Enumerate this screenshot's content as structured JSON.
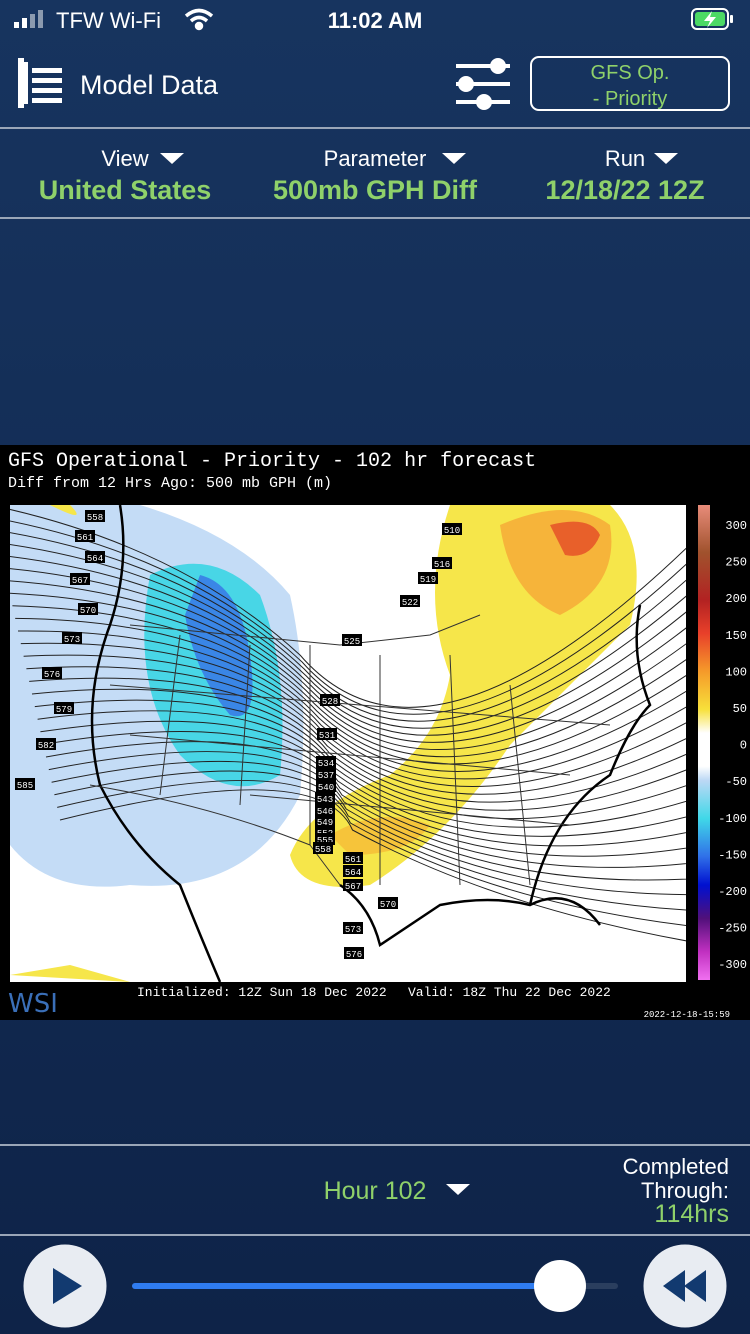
{
  "status": {
    "carrier": "TFW Wi-Fi",
    "time": "11:02 AM"
  },
  "header": {
    "title": "Model Data",
    "model_button": [
      "GFS Op.",
      "- Priority"
    ]
  },
  "selectors": [
    {
      "label": "View",
      "value": "United States"
    },
    {
      "label": "Parameter",
      "value": "500mb GPH Diff"
    },
    {
      "label": "Run",
      "value": "12/18/22 12Z"
    }
  ],
  "map": {
    "title": "GFS Operational - Priority - 102 hr forecast",
    "subtitle": "Diff from 12 Hrs Ago: 500 mb GPH (m)",
    "contour_labels": [
      "558",
      "561",
      "564",
      "567",
      "570",
      "573",
      "576",
      "579",
      "582",
      "585",
      "510",
      "516",
      "519",
      "522",
      "525",
      "528",
      "531",
      "534",
      "537",
      "540",
      "543",
      "546",
      "549",
      "552",
      "555",
      "558",
      "561",
      "564",
      "567",
      "570",
      "573",
      "576"
    ],
    "colorbar_labels": [
      "300",
      "250",
      "200",
      "150",
      "100",
      "50",
      "0",
      "-50",
      "-100",
      "-150",
      "-200",
      "-250",
      "-300"
    ],
    "brand": "WSI",
    "initialized": "Initialized: 12Z Sun 18 Dec 2022",
    "valid": "Valid: 18Z Thu 22 Dec 2022",
    "stamp": "2022-12-18-15:59"
  },
  "footer": {
    "hour": "Hour 102",
    "completed": [
      "Completed",
      "Through:",
      "114hrs"
    ]
  }
}
